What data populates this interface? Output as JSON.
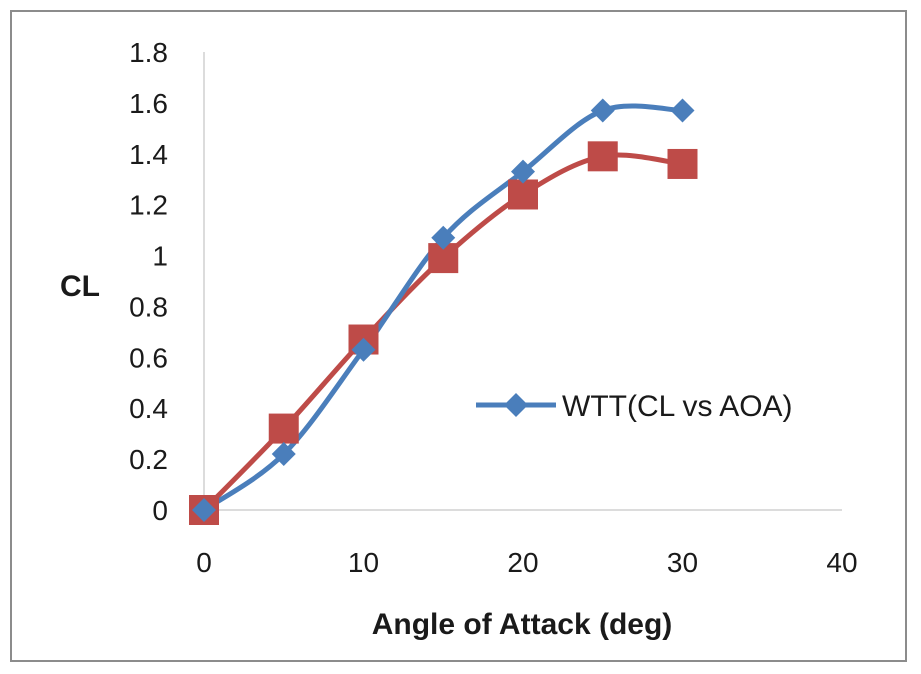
{
  "chart_data": {
    "type": "line",
    "xlabel": "Angle of Attack (deg)",
    "ylabel": "CL",
    "xlim": [
      0,
      40
    ],
    "ylim": [
      0,
      1.8
    ],
    "xticks": [
      "0",
      "10",
      "20",
      "30",
      "40"
    ],
    "yticks": [
      "0",
      "0.2",
      "0.4",
      "0.6",
      "0.8",
      "1",
      "1.2",
      "1.4",
      "1.6",
      "1.8"
    ],
    "grid": false,
    "legend_position": "middle-right",
    "series": [
      {
        "name": "WTT(CL vs AOA)",
        "color": "#4a7ebb",
        "marker": "diamond",
        "x": [
          0,
          5,
          10,
          15,
          20,
          25,
          30
        ],
        "y": [
          0,
          0.22,
          0.63,
          1.07,
          1.33,
          1.57,
          1.57
        ]
      },
      {
        "color": "#be4b48",
        "marker": "square",
        "x": [
          0,
          5,
          10,
          15,
          20,
          25,
          30
        ],
        "y": [
          0,
          0.32,
          0.67,
          0.99,
          1.24,
          1.39,
          1.36
        ]
      }
    ]
  }
}
